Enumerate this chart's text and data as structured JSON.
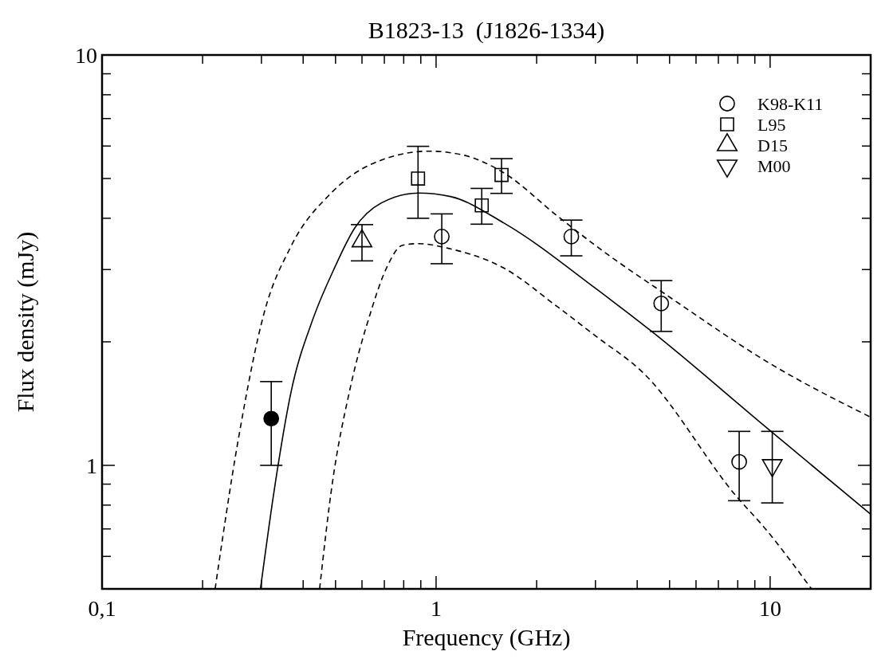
{
  "chart_data": {
    "type": "scatter",
    "title": "B1823-13  (J1826-1334)",
    "xlabel": "Frequency (GHz)",
    "ylabel": "Flux density (mJy)",
    "log": "xy",
    "xlim": [
      0.1,
      20
    ],
    "ylim": [
      0.5,
      10
    ],
    "xticks": [
      {
        "value": 0.1,
        "label": "0,1"
      },
      {
        "value": 0.2,
        "label": null
      },
      {
        "value": 0.3,
        "label": null
      },
      {
        "value": 0.4,
        "label": null
      },
      {
        "value": 0.5,
        "label": null
      },
      {
        "value": 0.6,
        "label": null
      },
      {
        "value": 0.7,
        "label": null
      },
      {
        "value": 0.8,
        "label": null
      },
      {
        "value": 0.9,
        "label": null
      },
      1,
      {
        "value": 2,
        "label": null
      },
      {
        "value": 3,
        "label": null
      },
      {
        "value": 4,
        "label": null
      },
      {
        "value": 5,
        "label": null
      },
      {
        "value": 6,
        "label": null
      },
      {
        "value": 7,
        "label": null
      },
      {
        "value": 8,
        "label": null
      },
      {
        "value": 9,
        "label": null
      },
      10
    ],
    "yticks": [
      {
        "value": 0.5,
        "label": null
      },
      {
        "value": 0.6,
        "label": null
      },
      {
        "value": 0.7,
        "label": null
      },
      {
        "value": 0.8,
        "label": null
      },
      {
        "value": 0.9,
        "label": null
      },
      1,
      {
        "value": 2,
        "label": null
      },
      {
        "value": 3,
        "label": null
      },
      {
        "value": 4,
        "label": null
      },
      {
        "value": 5,
        "label": null
      },
      {
        "value": 6,
        "label": null
      },
      {
        "value": 7,
        "label": null
      },
      {
        "value": 8,
        "label": null
      },
      {
        "value": 9,
        "label": null
      },
      10
    ],
    "legend": "top right",
    "grid": false,
    "series": [
      {
        "name": "K98-K11",
        "marker": "circle",
        "color": "#000000",
        "x": [
          1.04,
          2.54,
          4.72,
          8.08
        ],
        "values": [
          3.61,
          3.61,
          2.48,
          1.02
        ],
        "errors": [
          [
            3.1,
            4.1
          ],
          [
            3.24,
            3.96
          ],
          [
            2.12,
            2.82
          ],
          [
            0.82,
            1.21
          ]
        ]
      },
      {
        "name": "L95",
        "marker": "square",
        "color": "#000000",
        "x": [
          0.883,
          1.37,
          1.57
        ],
        "values": [
          5.0,
          4.3,
          5.1
        ],
        "errors": [
          [
            4.0,
            5.99
          ],
          [
            3.87,
            4.73
          ],
          [
            4.6,
            5.59
          ]
        ]
      },
      {
        "name": "D15",
        "marker": "triangle",
        "color": "#000000",
        "x": [
          0.6
        ],
        "values": [
          3.52
        ],
        "errors": [
          [
            3.15,
            3.86
          ]
        ]
      },
      {
        "name": "M00",
        "marker": "triangle-down",
        "color": "#000000",
        "x": [
          10.15
        ],
        "values": [
          1.0
        ],
        "errors": [
          [
            0.81,
            1.21
          ]
        ]
      },
      {
        "marker": "circle",
        "color": "#000000",
        "x": [
          0.321
        ],
        "values": [
          1.3
        ],
        "errors": [
          [
            1.0,
            1.6
          ]
        ]
      },
      {
        "type": "line",
        "marker": "none",
        "line_style": "solid",
        "color": "#000000",
        "x": [
          0.298,
          0.33,
          0.368,
          0.426,
          0.493,
          0.571,
          0.686,
          0.886,
          1.104,
          1.592,
          3.02,
          4.39,
          9.82,
          20
        ],
        "values": [
          0.5,
          0.904,
          1.51,
          2.25,
          2.99,
          3.79,
          4.36,
          4.61,
          4.52,
          3.9,
          2.69,
          2.13,
          1.23,
          0.76
        ]
      },
      {
        "type": "line",
        "marker": "none",
        "line_style": "dashed",
        "color": "#000000",
        "x": [
          0.218,
          0.255,
          0.306,
          0.368,
          0.484,
          0.637,
          0.953,
          1.21,
          1.59,
          2.3,
          3.02,
          5.04,
          10,
          20
        ],
        "values": [
          0.5,
          1.14,
          2.36,
          3.42,
          4.6,
          5.41,
          5.83,
          5.7,
          5.17,
          4.06,
          3.42,
          2.56,
          1.77,
          1.31
        ]
      },
      {
        "type": "line",
        "marker": "none",
        "line_style": "dashed",
        "color": "#000000",
        "x": [
          0.448,
          0.489,
          0.55,
          0.637,
          0.711,
          0.794,
          0.886,
          1.104,
          1.59,
          2.3,
          3.02,
          4.14,
          8.07,
          9.43,
          13.3
        ],
        "values": [
          0.5,
          0.904,
          1.51,
          2.36,
          3.03,
          3.44,
          3.47,
          3.37,
          3.03,
          2.44,
          2.06,
          1.69,
          0.826,
          0.718,
          0.5
        ]
      }
    ]
  }
}
